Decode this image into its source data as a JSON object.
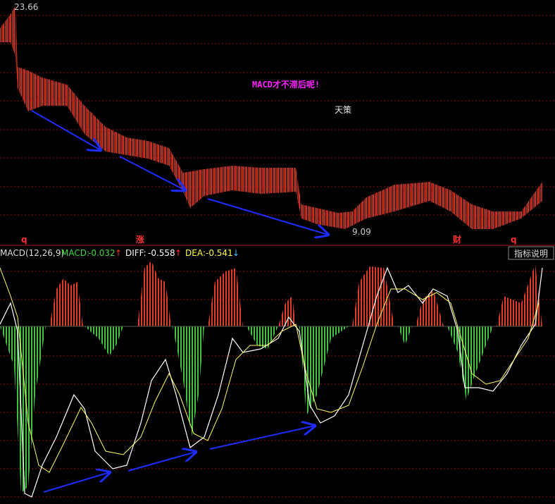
{
  "price_panel": {
    "high_label": "23.66",
    "title": "MACD才不滞后呢!",
    "author": "天策",
    "low_label": "9.09",
    "markers": [
      "q",
      "涨",
      "财",
      "q"
    ]
  },
  "macd_panel": {
    "name": "MACD(12,26,9)",
    "macd_label": "MACD:",
    "macd_value": "-0.032",
    "macd_arrow": "↑",
    "diff_label": "DIFF:",
    "diff_value": "-0.558",
    "diff_arrow": "↑",
    "dea_label": "DEA:",
    "dea_value": "-0.541",
    "dea_arrow": "↓",
    "help_button": "指标说明"
  }
}
